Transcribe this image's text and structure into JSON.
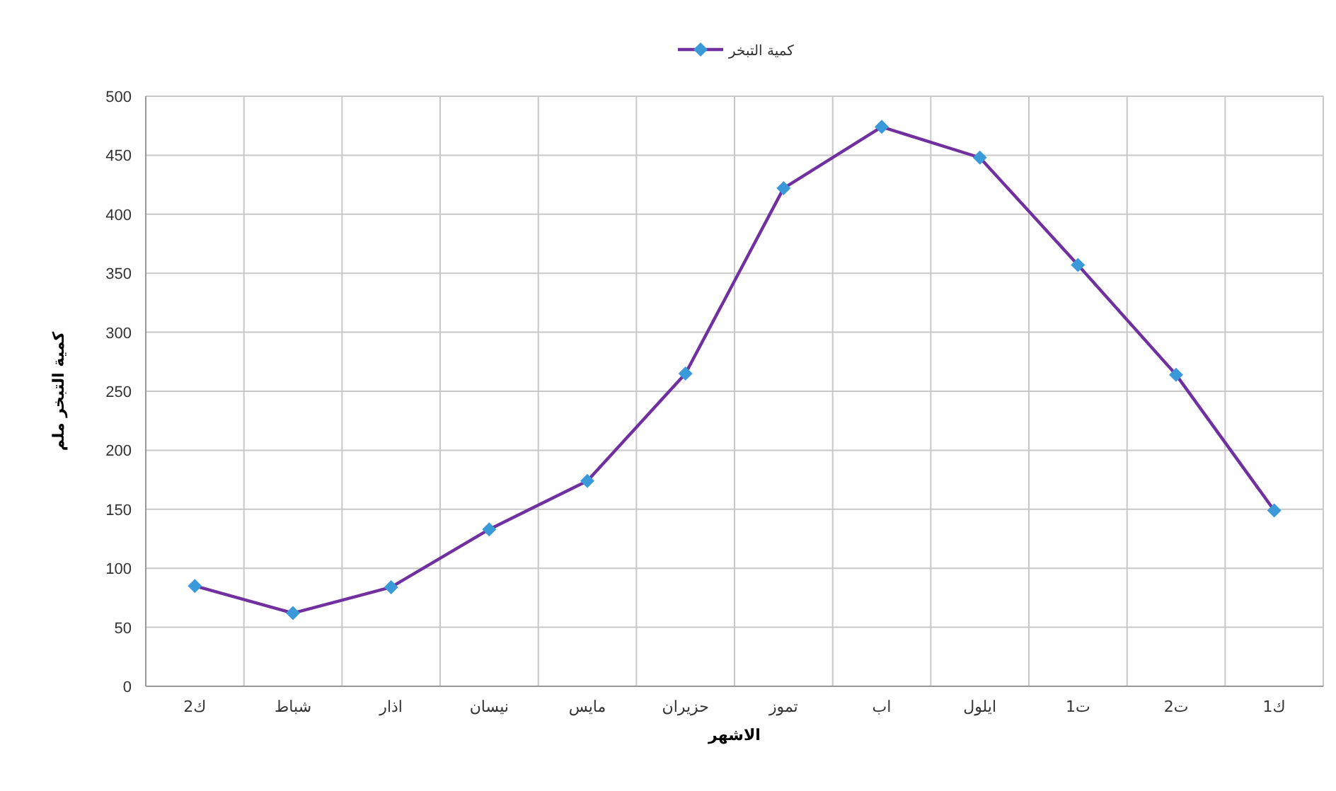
{
  "chart_data": {
    "type": "line",
    "categories": [
      "ك2",
      "شباط",
      "اذار",
      "نيسان",
      "مايس",
      "حزيران",
      "تموز",
      "اب",
      "ايلول",
      "ت1",
      "ت2",
      "ك1"
    ],
    "series": [
      {
        "name": "كمية التبخر",
        "color": "#7030a0",
        "values": [
          85,
          62,
          84,
          133,
          174,
          265,
          422,
          474,
          448,
          357,
          264,
          149
        ]
      }
    ],
    "xlabel": "الاشهر",
    "ylabel": "كمية التبخر ملم",
    "ylim": [
      0,
      500
    ],
    "yticks": [
      0,
      50,
      100,
      150,
      200,
      250,
      300,
      350,
      400,
      450,
      500
    ],
    "grid": true,
    "legend": "top",
    "marker": "diamond",
    "line_style": "solid"
  }
}
